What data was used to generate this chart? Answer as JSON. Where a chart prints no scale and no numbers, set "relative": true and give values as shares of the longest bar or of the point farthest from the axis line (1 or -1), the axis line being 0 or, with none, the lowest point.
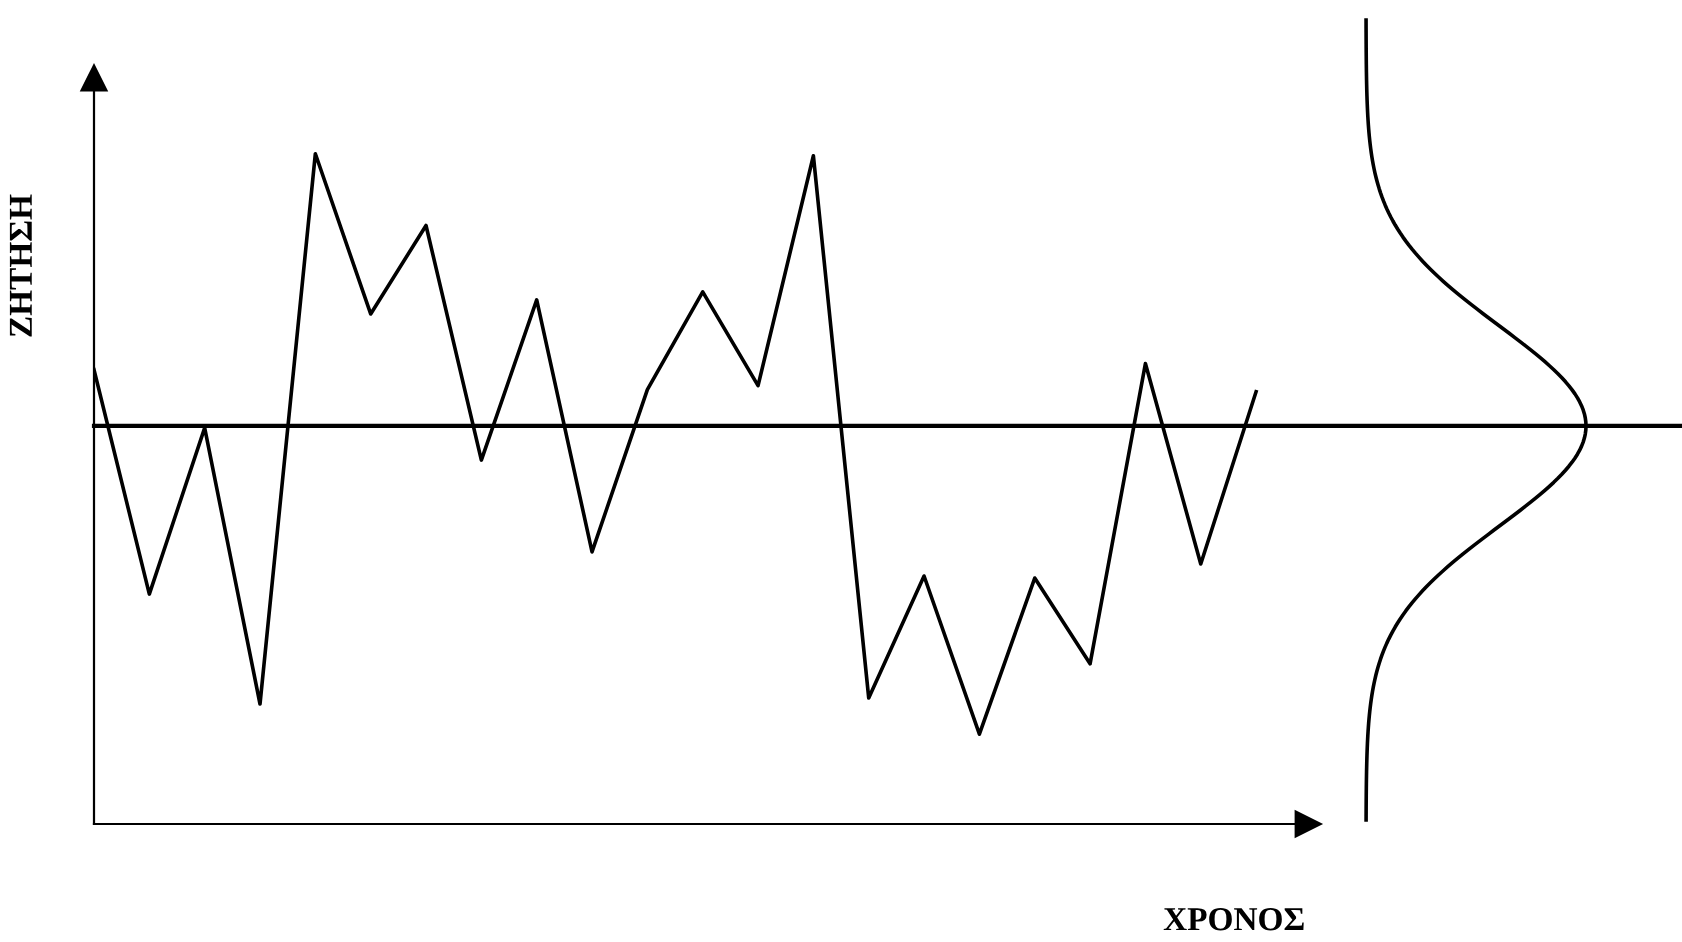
{
  "chart_data": {
    "type": "line",
    "relative": true,
    "xlabel": "ΧΡΟΝΟΣ",
    "ylabel": "ΖΗΤΗΣΗ",
    "categories": [
      null,
      null,
      null,
      null,
      null,
      null,
      null,
      null,
      null,
      null,
      null,
      null,
      null,
      null,
      null,
      null,
      null,
      null,
      null,
      null,
      null,
      null
    ],
    "series": [
      {
        "color": "#000000",
        "values": [
          0.678,
          0.343,
          0.591,
          0.179,
          1.0,
          0.761,
          0.893,
          0.543,
          0.782,
          0.406,
          0.648,
          0.794,
          0.654,
          0.997,
          0.188,
          0.37,
          0.134,
          0.367,
          0.239,
          0.687,
          0.388,
          0.645
        ]
      }
    ],
    "ref_lines": [
      {
        "axis": "y",
        "value": 0.594,
        "color": "#000000"
      }
    ],
    "marker": "none",
    "line_style": "solid",
    "grid": false
  }
}
